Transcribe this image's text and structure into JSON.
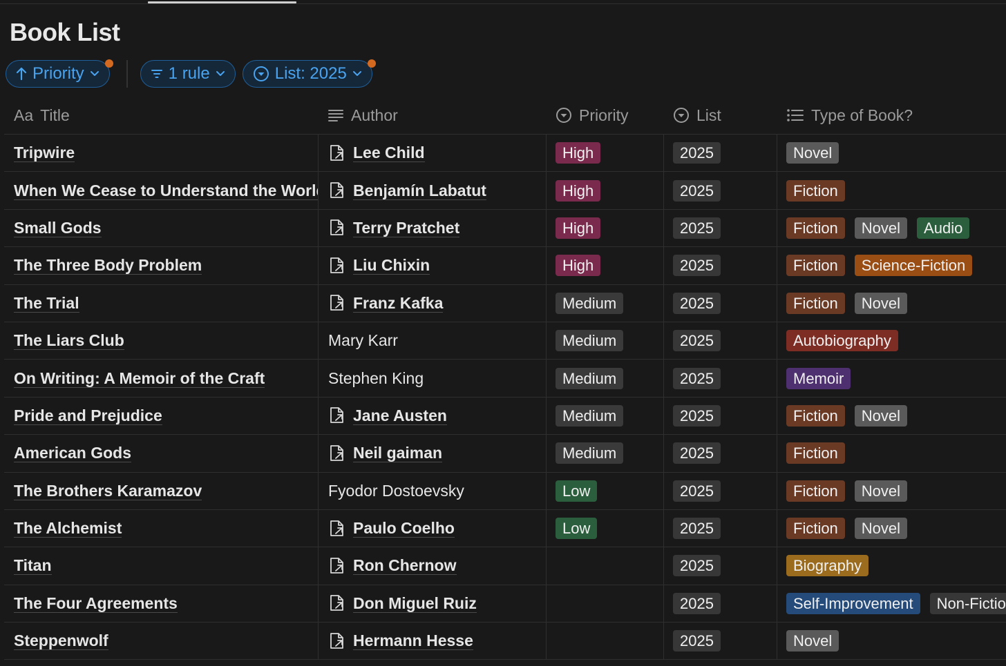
{
  "page": {
    "title": "Book List"
  },
  "filters": {
    "sort_label": "Priority",
    "rule_label": "1 rule",
    "list_label": "List: 2025"
  },
  "columns": {
    "title": "Title",
    "title_prefix": "Aa",
    "author": "Author",
    "priority": "Priority",
    "list": "List",
    "type": "Type of Book?"
  },
  "rows": [
    {
      "title": "Tripwire",
      "author": "Lee Child",
      "author_linked": true,
      "priority": "High",
      "list": "2025",
      "types": [
        "Novel"
      ]
    },
    {
      "title": "When We Cease to Understand the World",
      "author": "Benjamín Labatut",
      "author_linked": true,
      "priority": "High",
      "list": "2025",
      "types": [
        "Fiction"
      ]
    },
    {
      "title": "Small Gods",
      "author": "Terry Pratchet",
      "author_linked": true,
      "priority": "High",
      "list": "2025",
      "types": [
        "Fiction",
        "Novel",
        "Audio"
      ]
    },
    {
      "title": "The Three Body Problem",
      "author": "Liu Chixin",
      "author_linked": true,
      "priority": "High",
      "list": "2025",
      "types": [
        "Fiction",
        "Science-Fiction"
      ]
    },
    {
      "title": "The Trial",
      "author": "Franz Kafka",
      "author_linked": true,
      "priority": "Medium",
      "list": "2025",
      "types": [
        "Fiction",
        "Novel"
      ]
    },
    {
      "title": "The Liars Club",
      "author": "Mary Karr",
      "author_linked": false,
      "priority": "Medium",
      "list": "2025",
      "types": [
        "Autobiography"
      ]
    },
    {
      "title": "On Writing: A Memoir of the Craft",
      "author": "Stephen King",
      "author_linked": false,
      "priority": "Medium",
      "list": "2025",
      "types": [
        "Memoir"
      ]
    },
    {
      "title": "Pride and Prejudice",
      "author": "Jane Austen",
      "author_linked": true,
      "priority": "Medium",
      "list": "2025",
      "types": [
        "Fiction",
        "Novel"
      ]
    },
    {
      "title": "American Gods",
      "author": "Neil gaiman",
      "author_linked": true,
      "priority": "Medium",
      "list": "2025",
      "types": [
        "Fiction"
      ]
    },
    {
      "title": "The Brothers Karamazov",
      "author": "Fyodor Dostoevsky",
      "author_linked": false,
      "priority": "Low",
      "list": "2025",
      "types": [
        "Fiction",
        "Novel"
      ]
    },
    {
      "title": "The Alchemist",
      "author": "Paulo Coelho",
      "author_linked": true,
      "priority": "Low",
      "list": "2025",
      "types": [
        "Fiction",
        "Novel"
      ]
    },
    {
      "title": "Titan",
      "author": "Ron Chernow",
      "author_linked": true,
      "priority": "",
      "list": "2025",
      "types": [
        "Biography"
      ]
    },
    {
      "title": "The Four Agreements",
      "author": "Don Miguel Ruiz",
      "author_linked": true,
      "priority": "",
      "list": "2025",
      "types": [
        "Self-Improvement",
        "Non-Fiction"
      ]
    },
    {
      "title": "Steppenwolf",
      "author": "Hermann Hesse",
      "author_linked": true,
      "priority": "",
      "list": "2025",
      "types": [
        "Novel"
      ]
    }
  ],
  "tag_colors": {
    "High": "#7a2a4c",
    "Medium": "#3a3a3a",
    "Low": "#2b5e3d",
    "Novel": "#5a5a5a",
    "Fiction": "#6b3a25",
    "Audio": "#2b5e3d",
    "Science-Fiction": "#9a4e13",
    "Autobiography": "#7e2d25",
    "Memoir": "#4e2f70",
    "Biography": "#9b6c1e",
    "Self-Improvement": "#244b7a",
    "Non-Fiction": "#373737"
  },
  "icons": {
    "sort": "arrow-up-icon",
    "rule": "filter-lines-icon",
    "list": "select-circle-icon",
    "author_page": "page-link-icon"
  }
}
